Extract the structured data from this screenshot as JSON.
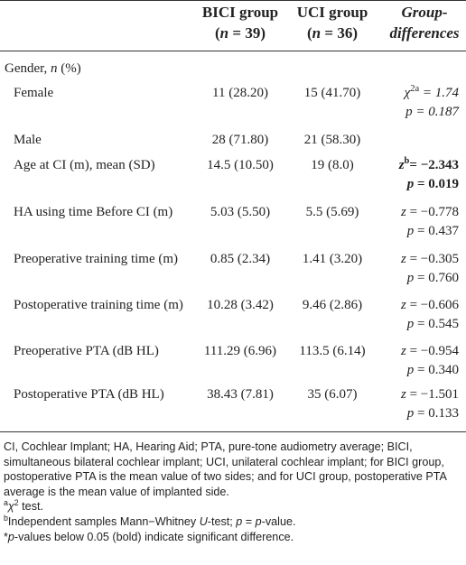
{
  "table": {
    "header": [
      [
        [
          {
            "text": "BICI group",
            "style": "b"
          }
        ],
        [
          {
            "text": "(",
            "style": "b"
          },
          {
            "text": "n",
            "style": "bi"
          },
          {
            "text": " = 39)",
            "style": "b"
          }
        ]
      ],
      [
        [
          {
            "text": "UCI group",
            "style": "b"
          }
        ],
        [
          {
            "text": "(",
            "style": "b"
          },
          {
            "text": "n",
            "style": "bi"
          },
          {
            "text": " = 36)",
            "style": "b"
          }
        ]
      ],
      [
        [
          {
            "text": "Group-",
            "style": "bi"
          }
        ],
        [
          {
            "text": "differences",
            "style": "bi"
          }
        ]
      ]
    ],
    "rows": [
      {
        "label": [
          {
            "text": "Gender, "
          },
          {
            "text": "n",
            "style": "i"
          },
          {
            "text": " (%)"
          }
        ],
        "section": true
      },
      {
        "label": [
          {
            "text": "Female"
          }
        ],
        "bici": "11 (28.20)",
        "uci": "15 (41.70)",
        "diff": [
          [
            {
              "text": "χ",
              "style": "i"
            },
            {
              "text": "2a",
              "style": "sup"
            },
            {
              "text": " = 1.74",
              "style": "i"
            }
          ],
          [
            {
              "text": "p = 0.187",
              "style": "i"
            }
          ]
        ]
      },
      {
        "label": [
          {
            "text": "Male"
          }
        ],
        "bici": "28 (71.80)",
        "uci": "21 (58.30)"
      },
      {
        "label": [
          {
            "text": "Age at CI (m), mean (SD)"
          }
        ],
        "bici": "14.5 (10.50)",
        "uci": "19 (8.0)",
        "diff": [
          [
            {
              "text": "z",
              "style": "bi"
            },
            {
              "text": "b",
              "style": "supb"
            },
            {
              "text": "= −2.343",
              "style": "b"
            }
          ],
          [
            {
              "text": "p",
              "style": "bi"
            },
            {
              "text": " = 0.019",
              "style": "b"
            }
          ]
        ]
      },
      {
        "label": [
          {
            "text": "HA using time Before CI (m)"
          }
        ],
        "bici": "5.03 (5.50)",
        "uci": "5.5 (5.69)",
        "diff": [
          [
            {
              "text": "z",
              "style": "i"
            },
            {
              "text": " = −0.778"
            }
          ],
          [
            {
              "text": "p",
              "style": "i"
            },
            {
              "text": " = 0.437"
            }
          ]
        ]
      },
      {
        "label": [
          {
            "text": "Preoperative training time (m)"
          }
        ],
        "bici": "0.85 (2.34)",
        "uci": "1.41 (3.20)",
        "diff": [
          [
            {
              "text": "z",
              "style": "i"
            },
            {
              "text": " = −0.305"
            }
          ],
          [
            {
              "text": "p",
              "style": "i"
            },
            {
              "text": " = 0.760"
            }
          ]
        ]
      },
      {
        "label": [
          {
            "text": "Postoperative training time (m)"
          }
        ],
        "bici": "10.28 (3.42)",
        "uci": "9.46 (2.86)",
        "diff": [
          [
            {
              "text": "z",
              "style": "i"
            },
            {
              "text": " = −0.606"
            }
          ],
          [
            {
              "text": "p",
              "style": "i"
            },
            {
              "text": " = 0.545"
            }
          ]
        ]
      },
      {
        "label": [
          {
            "text": "Preoperative PTA (dB HL)"
          }
        ],
        "bici": "111.29 (6.96)",
        "uci": "113.5 (6.14)",
        "diff": [
          [
            {
              "text": "z",
              "style": "i"
            },
            {
              "text": " = −0.954"
            }
          ],
          [
            {
              "text": "p",
              "style": "i"
            },
            {
              "text": " = 0.340"
            }
          ]
        ]
      },
      {
        "label": [
          {
            "text": "Postoperative PTA (dB HL)"
          }
        ],
        "bici": "38.43 (7.81)",
        "uci": "35 (6.07)",
        "diff": [
          [
            {
              "text": "z",
              "style": "i"
            },
            {
              "text": " = −1.501"
            }
          ],
          [
            {
              "text": "p",
              "style": "i"
            },
            {
              "text": " = 0.133"
            }
          ]
        ]
      }
    ],
    "footnotes": [
      [
        {
          "text": "CI, Cochlear Implant; HA, Hearing Aid; PTA, pure-tone audiometry average; BICI, simultaneous bilateral cochlear implant; UCI, unilateral cochlear implant; for BICI group, postoperative PTA is the mean value of two sides; and for UCI group, postoperative PTA average is the mean value of implanted side."
        }
      ],
      [
        {
          "text": "a",
          "style": "sup"
        },
        {
          "text": "χ",
          "style": "i"
        },
        {
          "text": "2",
          "style": "sup"
        },
        {
          "text": " test."
        }
      ],
      [
        {
          "text": "b",
          "style": "sup"
        },
        {
          "text": "Independent samples Mann−Whitney "
        },
        {
          "text": "U",
          "style": "i"
        },
        {
          "text": "-test; "
        },
        {
          "text": "p",
          "style": "i"
        },
        {
          "text": " = "
        },
        {
          "text": "p",
          "style": "i"
        },
        {
          "text": "-value."
        }
      ],
      [
        {
          "text": "*"
        },
        {
          "text": "p",
          "style": "i"
        },
        {
          "text": "-values below 0.05 (bold) indicate significant difference."
        }
      ]
    ]
  }
}
